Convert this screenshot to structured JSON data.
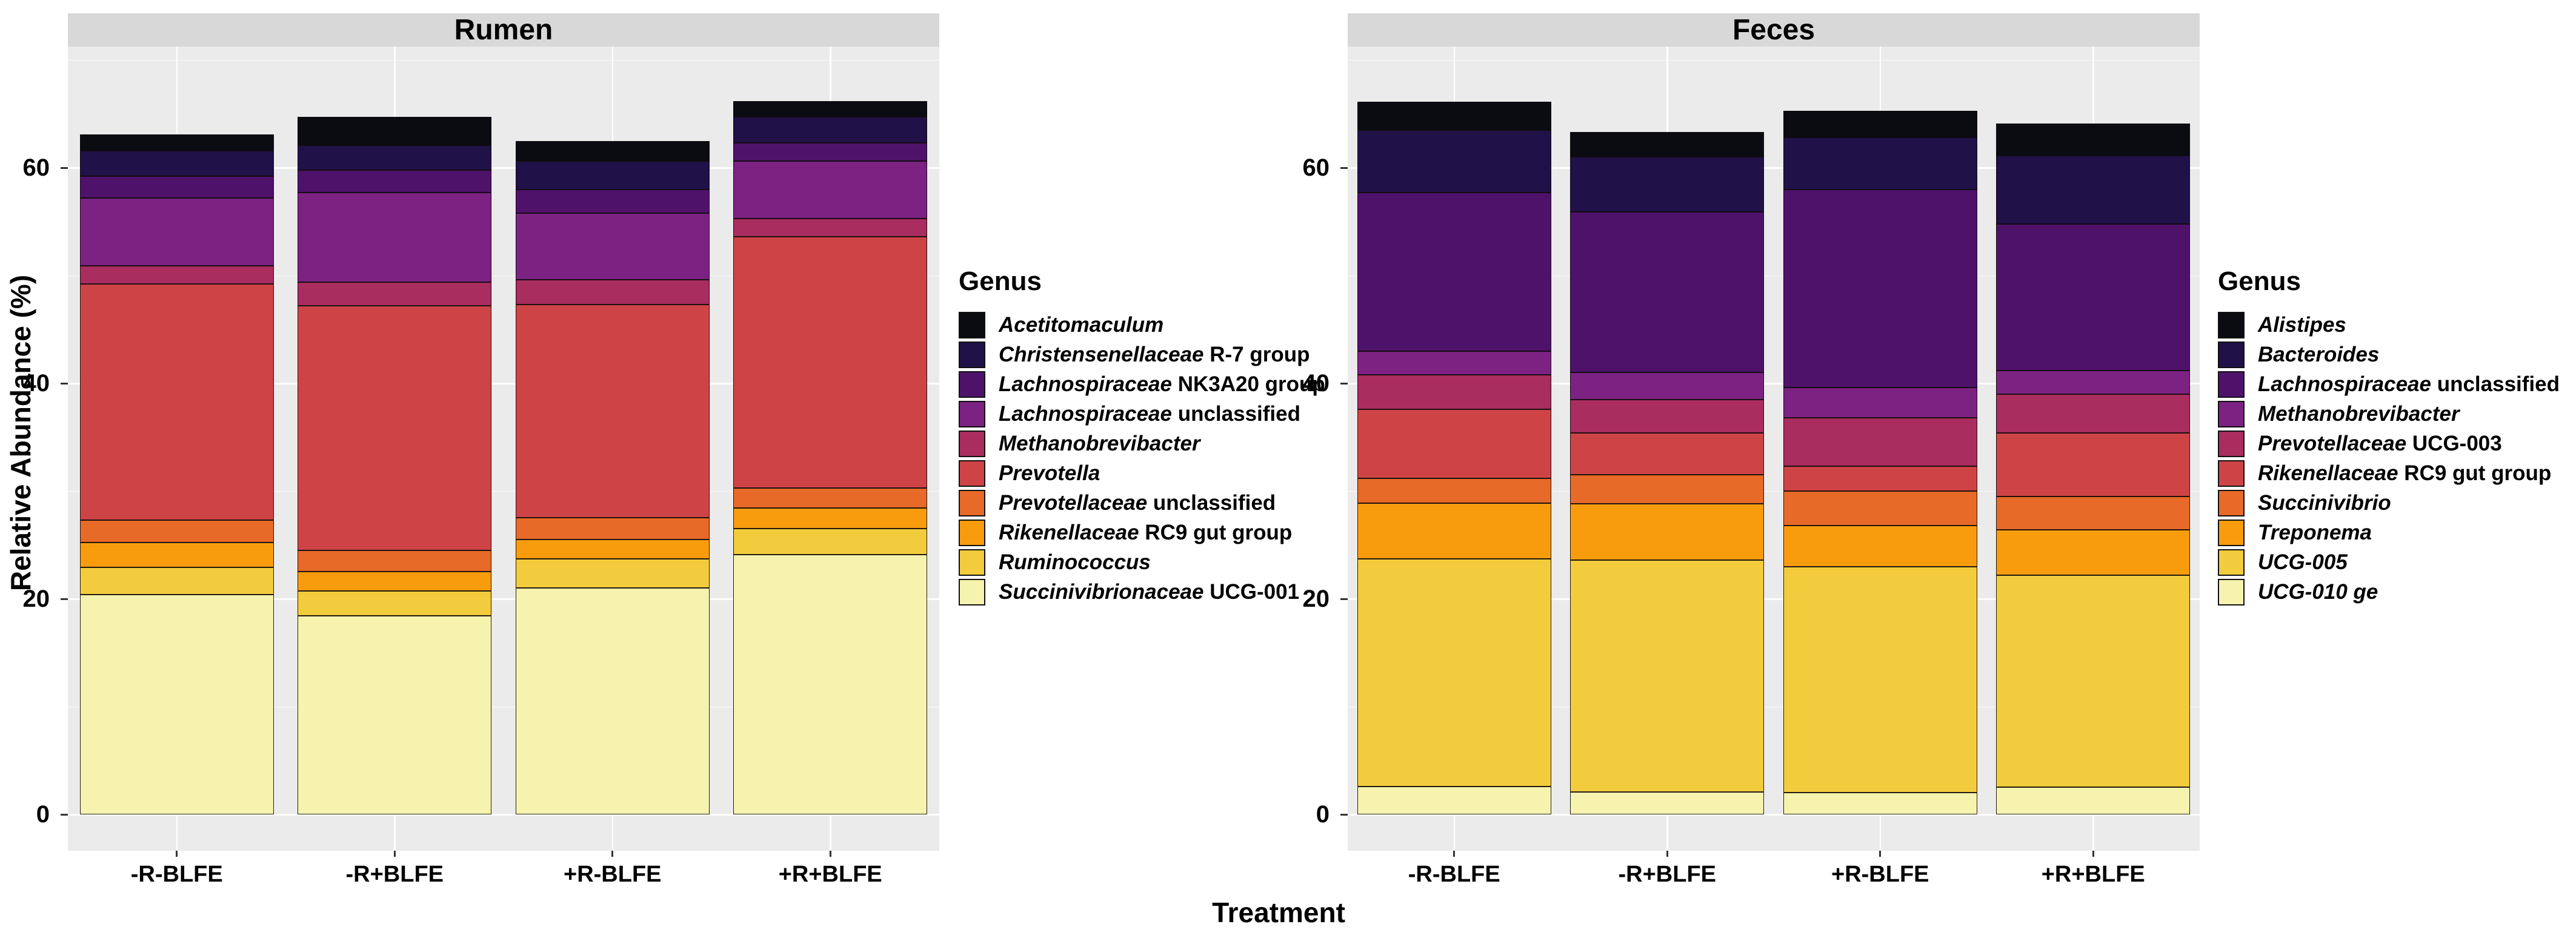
{
  "figure": {
    "y_axis_title": "Relative Abundance (%)",
    "x_axis_title": "Treatment",
    "legend_title": "Genus",
    "background": "#FFFFFF",
    "panel_background": "#EBEBEB",
    "strip_background": "#D8D8D8",
    "gridline_color": "#FFFFFF",
    "text_color": "#000000",
    "y_ticks": [
      0,
      20,
      40,
      60
    ],
    "y_minor_ticks": [
      10,
      30,
      50,
      70
    ],
    "ylim": [
      0,
      71
    ],
    "categories": [
      "-R-BLFE",
      "-R+BLFE",
      "+R-BLFE",
      "+R+BLFE"
    ]
  },
  "chart_data": [
    {
      "type": "bar",
      "stacked": true,
      "stack_order": "first_series_on_top",
      "title": "Rumen",
      "xlabel": "Treatment",
      "ylabel": "Relative Abundance (%)",
      "ylim": [
        0,
        71
      ],
      "grid": "on",
      "legend_position": "right",
      "legend_title": "Genus",
      "categories": [
        "-R-BLFE",
        "-R+BLFE",
        "+R-BLFE",
        "+R+BLFE"
      ],
      "series": [
        {
          "label_italic": "Acetitomaculum",
          "label_roman": "",
          "color": "#0B0B12",
          "values": [
            1.5,
            2.6,
            1.9,
            1.5
          ]
        },
        {
          "label_italic": "Christensenellaceae",
          "label_roman": "R-7 group",
          "color": "#201148",
          "values": [
            2.4,
            2.3,
            2.6,
            2.4
          ]
        },
        {
          "label_italic": "Lachnospiraceae",
          "label_roman": "NK3A20 group",
          "color": "#4F126B",
          "values": [
            2.0,
            2.1,
            2.2,
            1.7
          ]
        },
        {
          "label_italic": "Lachnospiraceae",
          "label_roman": "unclassified",
          "color": "#7B2282",
          "values": [
            6.3,
            8.3,
            6.2,
            5.3
          ]
        },
        {
          "label_italic": "Methanobrevibacter",
          "label_roman": "",
          "color": "#A92D5F",
          "values": [
            1.7,
            2.2,
            2.3,
            1.7
          ]
        },
        {
          "label_italic": "Prevotella",
          "label_roman": "",
          "color": "#CE4446",
          "values": [
            21.9,
            22.7,
            19.8,
            23.3
          ]
        },
        {
          "label_italic": "Prevotellaceae",
          "label_roman": "unclassified",
          "color": "#E76A28",
          "values": [
            2.1,
            2.0,
            2.0,
            1.9
          ]
        },
        {
          "label_italic": "Rikenellaceae",
          "label_roman": "RC9 gut group",
          "color": "#F89C0E",
          "values": [
            2.3,
            1.8,
            1.8,
            1.9
          ]
        },
        {
          "label_italic": "Ruminococcus",
          "label_roman": "",
          "color": "#F2CC3C",
          "values": [
            2.5,
            2.3,
            2.7,
            2.4
          ]
        },
        {
          "label_italic": "Succinivibrionaceae",
          "label_roman": "UCG-001",
          "color": "#F5F3AE",
          "values": [
            20.4,
            18.4,
            21.0,
            24.1
          ]
        }
      ],
      "totals": [
        63.1,
        64.7,
        62.5,
        66.2
      ]
    },
    {
      "type": "bar",
      "stacked": true,
      "stack_order": "first_series_on_top",
      "title": "Feces",
      "xlabel": "Treatment",
      "ylabel": "Relative Abundance (%)",
      "ylim": [
        0,
        71
      ],
      "grid": "on",
      "legend_position": "right",
      "legend_title": "Genus",
      "categories": [
        "-R-BLFE",
        "-R+BLFE",
        "+R-BLFE",
        "+R+BLFE"
      ],
      "series": [
        {
          "label_italic": "Alistipes",
          "label_roman": "",
          "color": "#0B0B12",
          "values": [
            2.6,
            2.3,
            2.5,
            3.0
          ]
        },
        {
          "label_italic": "Bacteroides",
          "label_roman": "",
          "color": "#201148",
          "values": [
            5.8,
            5.1,
            4.8,
            6.3
          ]
        },
        {
          "label_italic": "Lachnospiraceae",
          "label_roman": "unclassified",
          "color": "#4F126B",
          "values": [
            14.7,
            14.9,
            18.4,
            13.6
          ]
        },
        {
          "label_italic": "Methanobrevibacter",
          "label_roman": "",
          "color": "#7B2282",
          "values": [
            2.2,
            2.5,
            2.8,
            2.2
          ]
        },
        {
          "label_italic": "Prevotellaceae",
          "label_roman": "UCG-003",
          "color": "#A92D5F",
          "values": [
            3.2,
            3.1,
            4.5,
            3.6
          ]
        },
        {
          "label_italic": "Rikenellaceae",
          "label_roman": "RC9 gut group",
          "color": "#CE4446",
          "values": [
            6.4,
            3.9,
            2.3,
            5.9
          ]
        },
        {
          "label_italic": "Succinivibrio",
          "label_roman": "",
          "color": "#E76A28",
          "values": [
            2.3,
            2.7,
            3.2,
            3.1
          ]
        },
        {
          "label_italic": "Treponema",
          "label_roman": "",
          "color": "#F89C0E",
          "values": [
            5.2,
            5.2,
            3.8,
            4.2
          ]
        },
        {
          "label_italic": "UCG-005",
          "label_roman": "",
          "color": "#F2CC3C",
          "values": [
            21.1,
            21.5,
            21.0,
            19.7
          ]
        },
        {
          "label_italic": "UCG-010 ge",
          "label_roman": "",
          "color": "#F5F3AE",
          "values": [
            2.6,
            2.1,
            2.0,
            2.5
          ]
        }
      ],
      "totals": [
        66.1,
        63.3,
        65.3,
        64.1
      ]
    }
  ]
}
